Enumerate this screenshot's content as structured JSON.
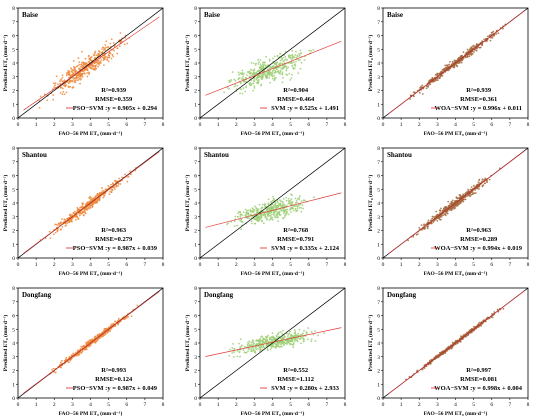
{
  "colors": {
    "pso": "#ef8b3c",
    "svm": "#9ccf74",
    "woa": "#a56a3e",
    "fit_line": "#e23b3b",
    "identity_line": "#000000"
  },
  "chart_data": [
    {
      "type": "scatter",
      "panel": "r1c1",
      "station": "Baise",
      "model": "PSO",
      "point_color": "#ef8b3c",
      "fit_label": "PSO−SVM :y = 0.905x + 0.294",
      "r2": "R²=0.939",
      "rmse": "RMSE=0.359",
      "slope": 0.905,
      "intercept": 0.294,
      "spread": 0.35,
      "xlabel": "FAO−56 PM ET₀ (mm·d⁻¹)",
      "ylabel": "Predicted ET₀ (mm·d⁻¹)",
      "xlim": [
        0,
        8
      ],
      "ylim": [
        0,
        8
      ],
      "xticks": [
        0,
        1,
        2,
        3,
        4,
        5,
        6,
        7,
        8
      ],
      "yticks": [
        0,
        1,
        2,
        3,
        4,
        5,
        6,
        7,
        8
      ],
      "x_range": [
        0.8,
        6.6
      ]
    },
    {
      "type": "scatter",
      "panel": "r1c2",
      "station": "Baise",
      "model": "SVM",
      "point_color": "#9ccf74",
      "fit_label": "SVM :y = 0.525x + 1.491",
      "r2": "R²=0.904",
      "rmse": "RMSE=0.464",
      "slope": 0.525,
      "intercept": 1.491,
      "spread": 0.45,
      "xlabel": "FAO−56 PM ET₀ (mm·d⁻¹)",
      "ylabel": "Predicted ET₀ (mm·d⁻¹)",
      "xlim": [
        0,
        8
      ],
      "ylim": [
        0,
        8
      ],
      "xticks": [
        0,
        1,
        2,
        3,
        4,
        5,
        6,
        7,
        8
      ],
      "yticks": [
        0,
        1,
        2,
        3,
        4,
        5,
        6,
        7,
        8
      ],
      "x_range": [
        0.8,
        6.6
      ]
    },
    {
      "type": "scatter",
      "panel": "r1c3",
      "station": "Baise",
      "model": "WOA",
      "point_color": "#a56a3e",
      "fit_label": "WOA−SVM :y = 0.996x + 0.011",
      "r2": "R²=0.939",
      "rmse": "RMSE=0.361",
      "slope": 0.996,
      "intercept": 0.011,
      "spread": 0.12,
      "xlabel": "FAO−56 PM ET₀ (mm·d⁻¹)",
      "ylabel": "Predicted ET₀ (mm·d⁻¹)",
      "xlim": [
        0,
        8
      ],
      "ylim": [
        0,
        8
      ],
      "xticks": [
        0,
        1,
        2,
        3,
        4,
        5,
        6,
        7,
        8
      ],
      "yticks": [
        0,
        1,
        2,
        3,
        4,
        5,
        6,
        7,
        8
      ],
      "x_range": [
        0.8,
        7.3
      ]
    },
    {
      "type": "scatter",
      "panel": "r2c1",
      "station": "Shantou",
      "model": "PSO",
      "point_color": "#ef8b3c",
      "fit_label": "PSO−SVM :y = 0.987x + 0.039",
      "r2": "R²=0.963",
      "rmse": "RMSE=0.279",
      "slope": 0.987,
      "intercept": 0.039,
      "spread": 0.18,
      "xlabel": "FAO−56 PM ET₀ (mm·d⁻¹)",
      "ylabel": "Predicted ET₀ (mm·d⁻¹)",
      "xlim": [
        0,
        8
      ],
      "ylim": [
        0,
        8
      ],
      "xticks": [
        0,
        1,
        2,
        3,
        4,
        5,
        6,
        7,
        8
      ],
      "yticks": [
        0,
        1,
        2,
        3,
        4,
        5,
        6,
        7,
        8
      ],
      "x_range": [
        1,
        6.8
      ]
    },
    {
      "type": "scatter",
      "panel": "r2c2",
      "station": "Shantou",
      "model": "SVM",
      "point_color": "#9ccf74",
      "fit_label": "SVM :y = 0.335x + 2.124",
      "r2": "R²=0.768",
      "rmse": "RMSE=0.791",
      "slope": 0.335,
      "intercept": 2.124,
      "spread": 0.35,
      "xlabel": "FAO−56 PM ET₀ (mm·d⁻¹)",
      "ylabel": "Predicted ET₀ (mm·d⁻¹)",
      "xlim": [
        0,
        8
      ],
      "ylim": [
        0,
        8
      ],
      "xticks": [
        0,
        1,
        2,
        3,
        4,
        5,
        6,
        7,
        8
      ],
      "yticks": [
        0,
        1,
        2,
        3,
        4,
        5,
        6,
        7,
        8
      ],
      "x_range": [
        1,
        6.8
      ]
    },
    {
      "type": "scatter",
      "panel": "r2c3",
      "station": "Shantou",
      "model": "WOA",
      "point_color": "#a56a3e",
      "fit_label": "WOA−SVM :y = 0.994x + 0.019",
      "r2": "R²=0.963",
      "rmse": "RMSE=0.289",
      "slope": 0.994,
      "intercept": 0.019,
      "spread": 0.15,
      "xlabel": "FAO−56 PM ET₀ (mm·d⁻¹)",
      "ylabel": "Predicted ET₀ (mm·d⁻¹)",
      "xlim": [
        0,
        8
      ],
      "ylim": [
        0,
        8
      ],
      "xticks": [
        0,
        1,
        2,
        3,
        4,
        5,
        6,
        7,
        8
      ],
      "yticks": [
        0,
        1,
        2,
        3,
        4,
        5,
        6,
        7,
        8
      ],
      "x_range": [
        1,
        6.8
      ]
    },
    {
      "type": "scatter",
      "panel": "r3c1",
      "station": "Dongfang",
      "model": "PSO",
      "point_color": "#ef8b3c",
      "fit_label": "PSO−SVM :y = 0.987x + 0.049",
      "r2": "R²=0.993",
      "rmse": "RMSE=0.124",
      "slope": 0.987,
      "intercept": 0.049,
      "spread": 0.1,
      "xlabel": "FAO−56 PM ET₀ (mm·d⁻¹)",
      "ylabel": "Predicted ET₀ (mm·d⁻¹)",
      "xlim": [
        0,
        8
      ],
      "ylim": [
        0,
        8
      ],
      "xticks": [
        0,
        1,
        2,
        3,
        4,
        5,
        6,
        7,
        8
      ],
      "yticks": [
        0,
        1,
        2,
        3,
        4,
        5,
        6,
        7,
        8
      ],
      "x_range": [
        1,
        7.2
      ]
    },
    {
      "type": "scatter",
      "panel": "r3c2",
      "station": "Dongfang",
      "model": "SVM",
      "point_color": "#9ccf74",
      "fit_label": "SVM :y = 0.280x + 2.933",
      "r2": "R²=0.552",
      "rmse": "RMSE=1.112",
      "slope": 0.28,
      "intercept": 2.933,
      "spread": 0.25,
      "xlabel": "FAO−56 PM ET₀ (mm·d⁻¹)",
      "ylabel": "Predicted ET₀ (mm·d⁻¹)",
      "xlim": [
        0,
        8
      ],
      "ylim": [
        0,
        8
      ],
      "xticks": [
        0,
        1,
        2,
        3,
        4,
        5,
        6,
        7,
        8
      ],
      "yticks": [
        0,
        1,
        2,
        3,
        4,
        5,
        6,
        7,
        8
      ],
      "x_range": [
        1,
        7.2
      ]
    },
    {
      "type": "scatter",
      "panel": "r3c3",
      "station": "Dongfang",
      "model": "WOA",
      "point_color": "#a56a3e",
      "fit_label": "WOA−SVM :y = 0.998x + 0.004",
      "r2": "R²=0.997",
      "rmse": "RMSE=0.081",
      "slope": 0.998,
      "intercept": 0.004,
      "spread": 0.07,
      "xlabel": "FAO−56 PM ET₀ (mm·d⁻¹)",
      "ylabel": "Predicted ET₀ (mm·d⁻¹)",
      "xlim": [
        0,
        8
      ],
      "ylim": [
        0,
        8
      ],
      "xticks": [
        0,
        1,
        2,
        3,
        4,
        5,
        6,
        7,
        8
      ],
      "yticks": [
        0,
        1,
        2,
        3,
        4,
        5,
        6,
        7,
        8
      ],
      "x_range": [
        1,
        7.2
      ]
    }
  ]
}
